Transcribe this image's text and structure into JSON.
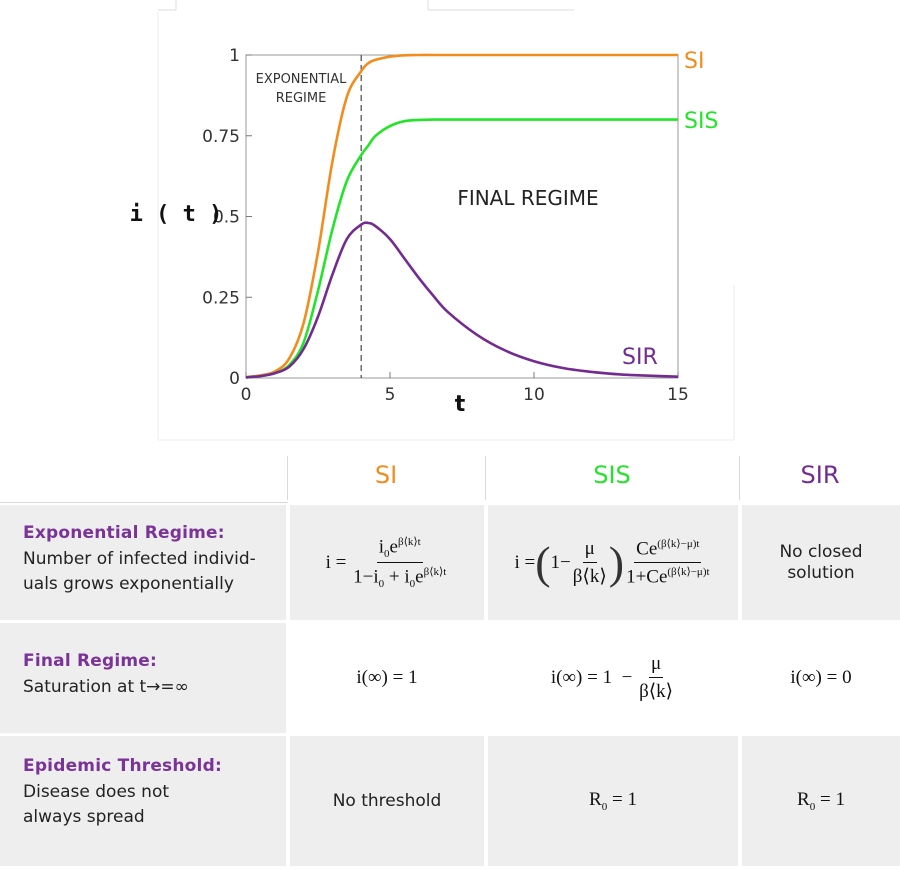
{
  "chart_data": {
    "type": "line",
    "xlabel": "t",
    "ylabel": "i ( t )",
    "xlim": [
      0,
      15
    ],
    "ylim": [
      0,
      1
    ],
    "xticks": [
      "0",
      "5",
      "10",
      "15"
    ],
    "yticks": [
      "0",
      "0.25",
      "0.5",
      "0.75",
      "1"
    ],
    "grid": false,
    "threshold_t": 4,
    "annotations": [
      "EXPONENTIAL",
      "REGIME",
      "FINAL REGIME"
    ],
    "x": [
      0,
      0.5,
      1,
      1.5,
      2,
      2.5,
      3,
      3.5,
      4,
      4.25,
      4.5,
      5,
      5.5,
      6,
      6.5,
      7,
      8,
      9,
      10,
      11,
      12,
      13,
      14,
      15
    ],
    "series": [
      {
        "name": "SI",
        "color": "#f28c1c",
        "values": [
          0.003,
          0.008,
          0.02,
          0.06,
          0.17,
          0.39,
          0.67,
          0.87,
          0.95,
          0.975,
          0.985,
          0.995,
          0.999,
          1,
          1,
          1,
          1,
          1,
          1,
          1,
          1,
          1,
          1,
          1
        ]
      },
      {
        "name": "SIS",
        "color": "#22e52a",
        "values": [
          0.002,
          0.006,
          0.015,
          0.04,
          0.11,
          0.27,
          0.46,
          0.61,
          0.69,
          0.72,
          0.75,
          0.78,
          0.795,
          0.799,
          0.8,
          0.8,
          0.8,
          0.8,
          0.8,
          0.8,
          0.8,
          0.8,
          0.8,
          0.8
        ]
      },
      {
        "name": "SIR",
        "color": "#732b91",
        "values": [
          0.002,
          0.006,
          0.015,
          0.035,
          0.09,
          0.19,
          0.32,
          0.43,
          0.475,
          0.48,
          0.47,
          0.43,
          0.37,
          0.31,
          0.255,
          0.205,
          0.135,
          0.085,
          0.052,
          0.031,
          0.019,
          0.011,
          0.007,
          0.004
        ]
      }
    ]
  },
  "table": {
    "headers": [
      {
        "label": "SI",
        "color": "#f28c1c"
      },
      {
        "label": "SIS",
        "color": "#22e52a"
      },
      {
        "label": "SIR",
        "color": "#732b91"
      }
    ],
    "rows": [
      {
        "title": "Exponential Regime:",
        "desc": [
          "Number of infected individ-",
          "uals grows exponentially"
        ],
        "sir_text": [
          "No closed",
          "solution"
        ]
      },
      {
        "title": "Final Regime:",
        "desc": [
          "Saturation at t→=∞"
        ]
      },
      {
        "title": "Epidemic Threshold:",
        "desc": [
          "Disease does not",
          "always spread"
        ],
        "si_text": "No threshold"
      }
    ]
  }
}
